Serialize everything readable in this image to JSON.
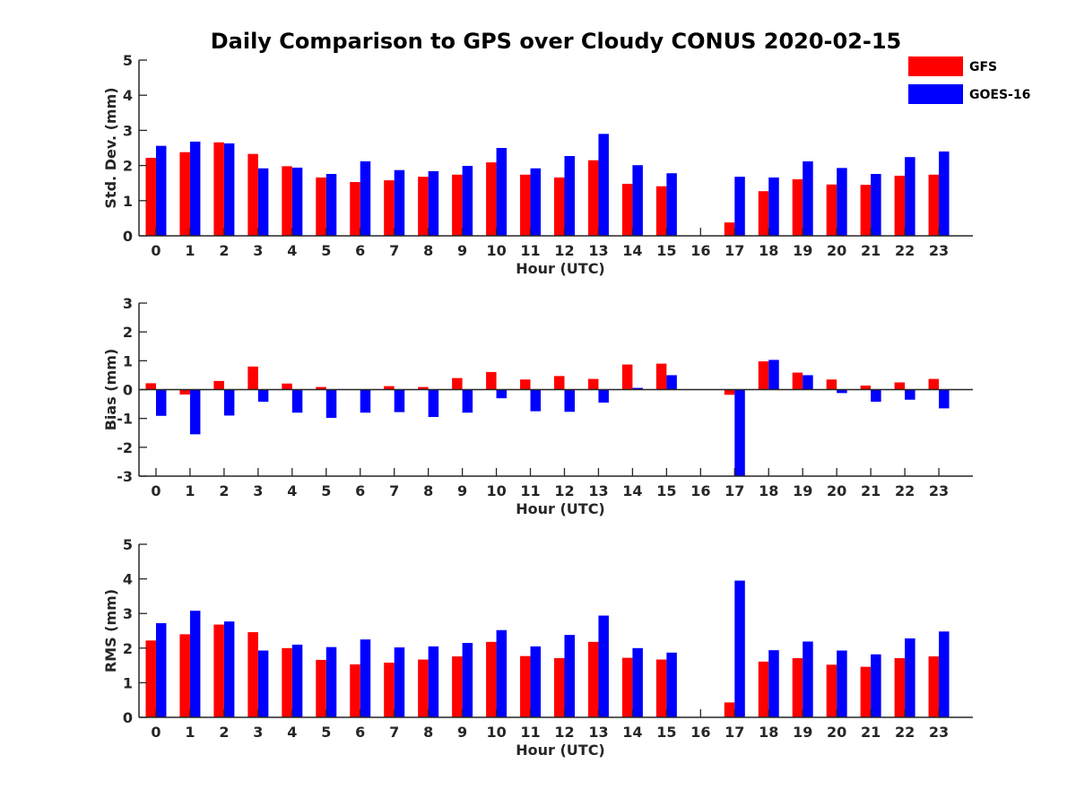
{
  "title": "Daily Comparison to GPS over Cloudy CONUS 2020-02-15",
  "legend": [
    {
      "name": "GFS",
      "color": "#ff0000"
    },
    {
      "name": "GOES-16",
      "color": "#0000ff"
    }
  ],
  "chart_data": [
    {
      "type": "bar",
      "ylabel": "Std. Dev. (mm)",
      "xlabel": "Hour (UTC)",
      "ylim": [
        0,
        5
      ],
      "yticks": [
        0,
        1,
        2,
        3,
        4,
        5
      ],
      "categories": [
        "0",
        "1",
        "2",
        "3",
        "4",
        "5",
        "6",
        "7",
        "8",
        "9",
        "10",
        "11",
        "12",
        "13",
        "14",
        "15",
        "16",
        "17",
        "18",
        "19",
        "20",
        "21",
        "22",
        "23"
      ],
      "series": [
        {
          "name": "GFS",
          "values": [
            2.22,
            2.38,
            2.66,
            2.33,
            1.98,
            1.66,
            1.53,
            1.58,
            1.68,
            1.74,
            2.09,
            1.74,
            1.66,
            2.15,
            1.48,
            1.41,
            null,
            0.38,
            1.27,
            1.61,
            1.46,
            1.45,
            1.71,
            1.74
          ]
        },
        {
          "name": "GOES-16",
          "values": [
            2.56,
            2.68,
            2.63,
            1.92,
            1.94,
            1.76,
            2.12,
            1.87,
            1.84,
            1.99,
            2.5,
            1.92,
            2.27,
            2.9,
            2.01,
            1.78,
            null,
            1.68,
            1.66,
            2.12,
            1.93,
            1.76,
            2.24,
            2.4
          ]
        }
      ]
    },
    {
      "type": "bar",
      "ylabel": "Bias (mm)",
      "xlabel": "Hour (UTC)",
      "ylim": [
        -3,
        3
      ],
      "yticks": [
        -3,
        -2,
        -1,
        0,
        1,
        2,
        3
      ],
      "categories": [
        "0",
        "1",
        "2",
        "3",
        "4",
        "5",
        "6",
        "7",
        "8",
        "9",
        "10",
        "11",
        "12",
        "13",
        "14",
        "15",
        "16",
        "17",
        "18",
        "19",
        "20",
        "21",
        "22",
        "23"
      ],
      "series": [
        {
          "name": "GFS",
          "values": [
            0.22,
            -0.17,
            0.3,
            0.8,
            0.21,
            0.09,
            0.0,
            0.12,
            0.09,
            0.4,
            0.61,
            0.35,
            0.47,
            0.37,
            0.87,
            0.9,
            null,
            -0.18,
            0.98,
            0.59,
            0.35,
            0.14,
            0.25,
            0.37
          ]
        },
        {
          "name": "GOES-16",
          "values": [
            -0.91,
            -1.55,
            -0.9,
            -0.42,
            -0.8,
            -0.98,
            -0.8,
            -0.78,
            -0.95,
            -0.8,
            -0.3,
            -0.75,
            -0.77,
            -0.45,
            0.06,
            0.5,
            null,
            -3.0,
            1.03,
            0.5,
            -0.12,
            -0.42,
            -0.35,
            -0.65
          ]
        }
      ]
    },
    {
      "type": "bar",
      "ylabel": "RMS (mm)",
      "xlabel": "Hour (UTC)",
      "ylim": [
        0,
        5
      ],
      "yticks": [
        0,
        1,
        2,
        3,
        4,
        5
      ],
      "categories": [
        "0",
        "1",
        "2",
        "3",
        "4",
        "5",
        "6",
        "7",
        "8",
        "9",
        "10",
        "11",
        "12",
        "13",
        "14",
        "15",
        "16",
        "17",
        "18",
        "19",
        "20",
        "21",
        "22",
        "23"
      ],
      "series": [
        {
          "name": "GFS",
          "values": [
            2.22,
            2.4,
            2.68,
            2.46,
            2.0,
            1.66,
            1.53,
            1.58,
            1.67,
            1.76,
            2.18,
            1.77,
            1.71,
            2.18,
            1.72,
            1.67,
            null,
            0.43,
            1.61,
            1.71,
            1.52,
            1.46,
            1.71,
            1.76
          ]
        },
        {
          "name": "GOES-16",
          "values": [
            2.72,
            3.08,
            2.77,
            1.93,
            2.1,
            2.03,
            2.25,
            2.02,
            2.05,
            2.15,
            2.52,
            2.05,
            2.38,
            2.94,
            2.0,
            1.87,
            null,
            3.95,
            1.94,
            2.19,
            1.93,
            1.82,
            2.28,
            2.48
          ]
        }
      ]
    }
  ]
}
